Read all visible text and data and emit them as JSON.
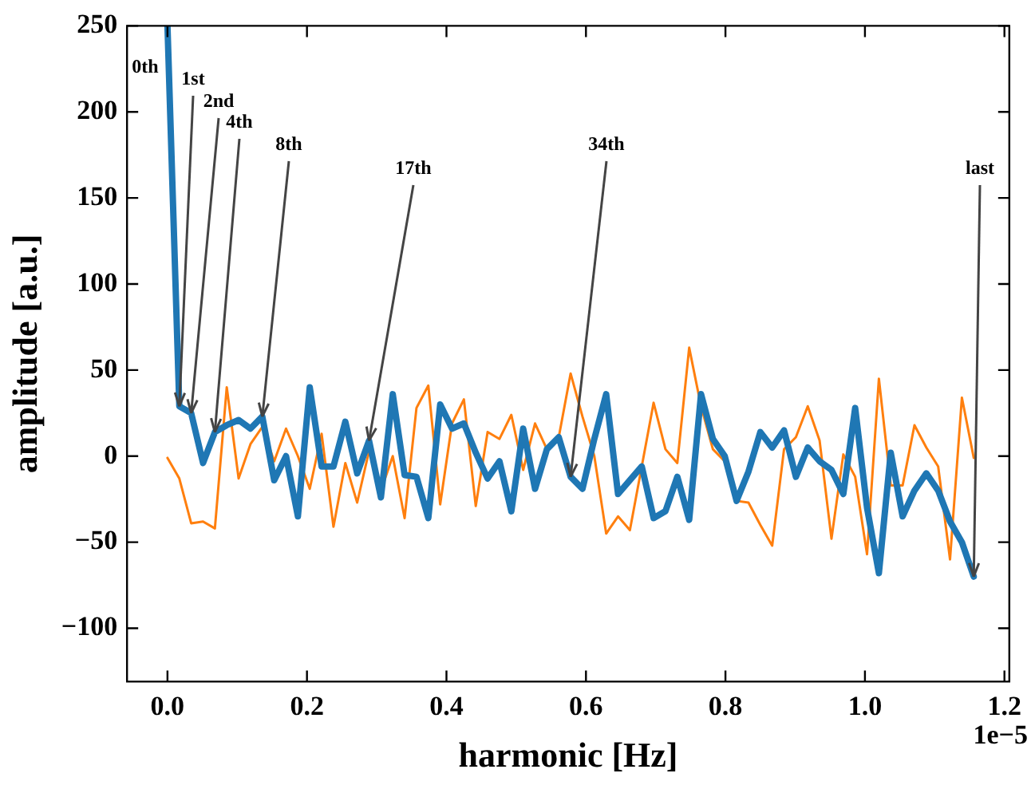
{
  "chart_data": {
    "type": "line",
    "xlabel": "harmonic [Hz]",
    "ylabel": "amplitude [a.u.]",
    "x": [
      0,
      0.017,
      0.034,
      0.051,
      0.068,
      0.085,
      0.102,
      0.119,
      0.136,
      0.153,
      0.17,
      0.187,
      0.204,
      0.221,
      0.238,
      0.255,
      0.272,
      0.289,
      0.306,
      0.323,
      0.34,
      0.357,
      0.374,
      0.391,
      0.408,
      0.425,
      0.442,
      0.459,
      0.476,
      0.493,
      0.51,
      0.527,
      0.544,
      0.561,
      0.578,
      0.595,
      0.612,
      0.629,
      0.646,
      0.663,
      0.68,
      0.697,
      0.714,
      0.731,
      0.748,
      0.765,
      0.782,
      0.799,
      0.816,
      0.833,
      0.85,
      0.867,
      0.884,
      0.901,
      0.918,
      0.935,
      0.952,
      0.969,
      0.986,
      1.003,
      1.02,
      1.037,
      1.054,
      1.071,
      1.088,
      1.105,
      1.122,
      1.139,
      1.156
    ],
    "series": [
      {
        "color": "#1f77b4",
        "values": [
          250,
          29,
          25,
          -4,
          14,
          18,
          21,
          16,
          23,
          -14,
          0,
          -35,
          40,
          -6,
          -6,
          20,
          -10,
          9,
          -24,
          36,
          -11,
          -12,
          -36,
          30,
          16,
          19,
          2,
          -13,
          -3,
          -32,
          16,
          -19,
          4,
          11,
          -12,
          -19,
          10,
          36,
          -22,
          -14,
          -6,
          -36,
          -32,
          -12,
          -37,
          36,
          10,
          0,
          -26,
          -9,
          14,
          5,
          15,
          -12,
          5,
          -3,
          -8,
          -22,
          28,
          -30,
          -68,
          2,
          -35,
          -20,
          -10,
          -20,
          -38,
          -50,
          -70
        ]
      },
      {
        "color": "#ff7f0e",
        "values": [
          -1,
          -13,
          -39,
          -38,
          -42,
          40,
          -13,
          7,
          17,
          -3,
          16,
          0,
          -19,
          13,
          -41,
          -4,
          -27,
          3,
          -20,
          0,
          -36,
          28,
          41,
          -28,
          19,
          33,
          -29,
          14,
          10,
          24,
          -8,
          19,
          4,
          11,
          48,
          23,
          0,
          -45,
          -35,
          -43,
          -6,
          31,
          4,
          -4,
          63,
          29,
          4,
          -3,
          -26,
          -27,
          -40,
          -52,
          4,
          11,
          29,
          9,
          -48,
          1,
          -12,
          -57,
          45,
          -17,
          -17,
          18,
          5,
          -6,
          -60,
          34,
          -1
        ]
      }
    ],
    "xlim": [
      -0.058,
      1.207
    ],
    "xticks": [
      {
        "value": 0,
        "label": "0.0"
      },
      0.2,
      0.4,
      0.6,
      0.8,
      {
        "value": 1,
        "label": "1.0"
      },
      1.2
    ],
    "ylim": [
      -131,
      250
    ],
    "yticks": [
      {
        "value": -100,
        "label": "−100"
      },
      {
        "value": -50,
        "label": "−50"
      },
      0,
      50,
      100,
      150,
      200,
      250
    ],
    "annotations": [
      {
        "text": "0th",
        "x": 0,
        "y": 250
      },
      {
        "text": "1st",
        "x": 0.017,
        "y": 29
      },
      {
        "text": "2nd",
        "x": 0.034,
        "y": 25
      },
      {
        "text": "4th",
        "x": 0.068,
        "y": 14
      },
      {
        "text": "8th",
        "x": 0.136,
        "y": 23
      },
      {
        "text": "17th",
        "x": 0.289,
        "y": 9
      },
      {
        "text": "34th",
        "x": 0.578,
        "y": -12
      },
      {
        "text": "last",
        "x": 1.156,
        "y": -70
      },
      "1e−5"
    ],
    "marker": "none",
    "line_style": "solid"
  }
}
